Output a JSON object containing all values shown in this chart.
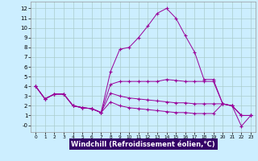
{
  "background_color": "#cceeff",
  "plot_bg": "#cceeff",
  "grid_color": "#aacccc",
  "line_color": "#990099",
  "marker": "+",
  "xlabel": "Windchill (Refroidissement éolien,°C)",
  "xlabel_fontsize": 6.0,
  "xlabel_color": "#ffffff",
  "xlabel_bg": "#330066",
  "xlim": [
    -0.5,
    23.5
  ],
  "ylim": [
    -0.7,
    12.7
  ],
  "ytick_vals": [
    0,
    1,
    2,
    3,
    4,
    5,
    6,
    7,
    8,
    9,
    10,
    11,
    12
  ],
  "ytick_labels": [
    "-0",
    "1",
    "2",
    "3",
    "4",
    "5",
    "6",
    "7",
    "8",
    "9",
    "10",
    "11",
    "12"
  ],
  "xtick_vals": [
    0,
    1,
    2,
    3,
    4,
    5,
    6,
    7,
    8,
    9,
    10,
    11,
    12,
    13,
    14,
    15,
    16,
    17,
    18,
    19,
    20,
    21,
    22,
    23
  ],
  "series1": [
    4.0,
    2.7,
    3.2,
    3.2,
    2.0,
    1.8,
    1.7,
    1.3,
    5.5,
    7.8,
    8.0,
    9.0,
    10.2,
    11.5,
    12.0,
    11.0,
    9.2,
    7.5,
    4.7,
    4.7,
    2.2,
    2.0,
    -0.1,
    1.0
  ],
  "series2": [
    4.0,
    2.7,
    3.2,
    3.2,
    2.0,
    1.8,
    1.7,
    1.3,
    4.2,
    4.5,
    4.5,
    4.5,
    4.5,
    4.5,
    4.7,
    4.6,
    4.5,
    4.5,
    4.5,
    4.5,
    2.2,
    2.0,
    1.0,
    1.0
  ],
  "series3": [
    4.0,
    2.7,
    3.2,
    3.2,
    2.0,
    1.8,
    1.7,
    1.3,
    3.3,
    3.0,
    2.8,
    2.7,
    2.6,
    2.5,
    2.4,
    2.3,
    2.3,
    2.2,
    2.2,
    2.2,
    2.2,
    2.0,
    1.0,
    1.0
  ],
  "series4": [
    4.0,
    2.7,
    3.2,
    3.2,
    2.0,
    1.8,
    1.7,
    1.3,
    2.4,
    2.0,
    1.8,
    1.7,
    1.6,
    1.5,
    1.4,
    1.3,
    1.3,
    1.2,
    1.2,
    1.2,
    2.2,
    2.0,
    1.0,
    1.0
  ]
}
